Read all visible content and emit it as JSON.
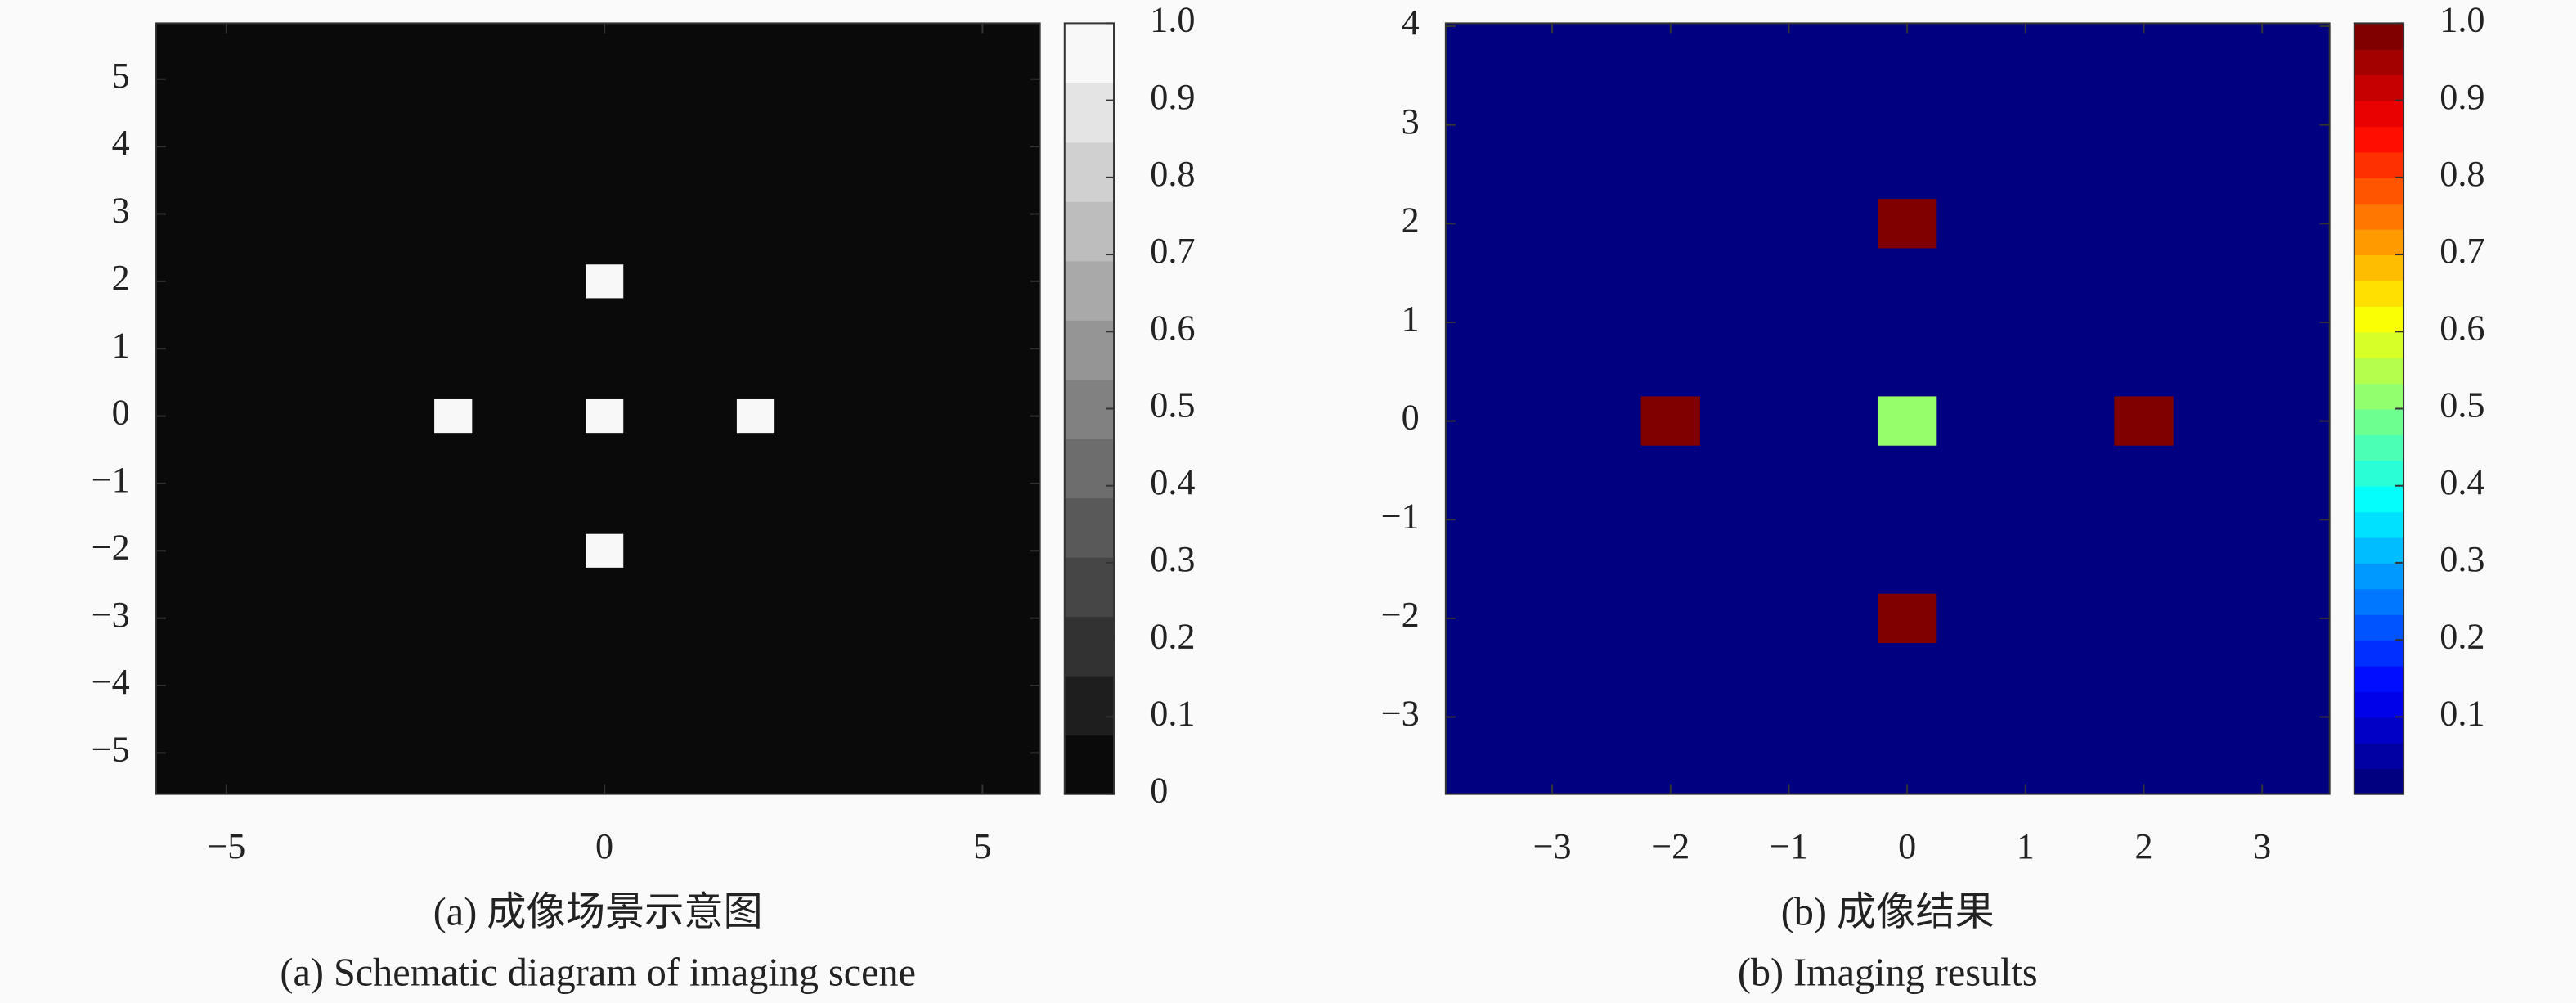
{
  "chart_data": [
    {
      "type": "heatmap",
      "colormap": "gray",
      "colorbar_levels": 13,
      "cell_size": 0.5,
      "background": 0,
      "x": [
        0,
        -2,
        0,
        2,
        0
      ],
      "y": [
        2,
        0,
        0,
        0,
        -2
      ],
      "values": [
        1,
        1,
        1,
        1,
        1
      ],
      "xlim": [
        -5.93,
        5.76
      ],
      "ylim": [
        -5.61,
        5.83
      ],
      "xticks": [
        {
          "value": -5,
          "label": "−5"
        },
        0,
        5
      ],
      "yticks": [
        {
          "value": -5,
          "label": "−5"
        },
        {
          "value": -4,
          "label": "−4"
        },
        {
          "value": -3,
          "label": "−3"
        },
        {
          "value": -2,
          "label": "−2"
        },
        {
          "value": -1,
          "label": "−1"
        },
        0,
        1,
        2,
        3,
        4,
        5
      ],
      "clim": [
        0,
        1
      ],
      "cticks": [
        0,
        0.1,
        0.2,
        0.3,
        0.4,
        0.5,
        0.6,
        0.7,
        0.8,
        0.9,
        {
          "value": 1,
          "label": "1.0"
        }
      ],
      "caption": [
        "(a) 成像场景示意图",
        "(a) Schematic diagram of imaging scene"
      ]
    },
    {
      "type": "heatmap",
      "colormap": "jet",
      "colorbar_levels": 30,
      "cell_size": 0.5,
      "background": 0,
      "x": [
        0,
        -2,
        0,
        2,
        0
      ],
      "y": [
        2,
        0,
        0,
        0,
        -2
      ],
      "values": [
        1,
        1,
        0.52,
        1,
        1
      ],
      "xlim": [
        -3.9,
        3.57
      ],
      "ylim": [
        -3.78,
        4.03
      ],
      "xticks": [
        {
          "value": -3,
          "label": "−3"
        },
        {
          "value": -2,
          "label": "−2"
        },
        {
          "value": -1,
          "label": "−1"
        },
        0,
        1,
        2,
        3
      ],
      "yticks": [
        {
          "value": -3,
          "label": "−3"
        },
        {
          "value": -2,
          "label": "−2"
        },
        {
          "value": -1,
          "label": "−1"
        },
        0,
        1,
        2,
        3,
        4
      ],
      "clim": [
        0,
        1
      ],
      "cticks": [
        0.1,
        0.2,
        0.3,
        0.4,
        0.5,
        0.6,
        0.7,
        0.8,
        0.9,
        {
          "value": 1,
          "label": "1.0"
        }
      ],
      "caption": [
        "(b) 成像结果",
        "(b) Imaging results"
      ]
    }
  ]
}
